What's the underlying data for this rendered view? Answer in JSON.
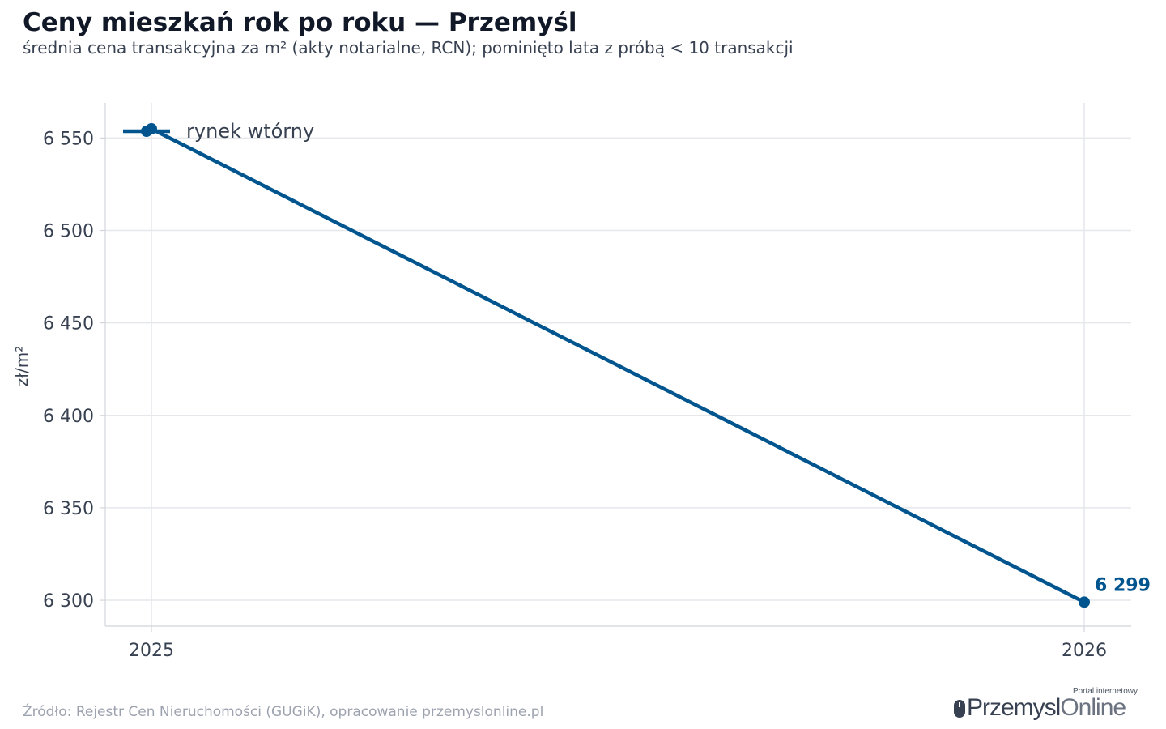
{
  "header": {
    "title": "Ceny mieszkań rok po roku — Przemyśl",
    "subtitle": "średnia cena transakcyjna za m² (akty notarialne, RCN); pominięto lata z próbą < 10 transakcji"
  },
  "footer": {
    "source": "Źródło: Rejestr Cen Nieruchomości (GUGiK), opracowanie przemyslonline.pl"
  },
  "logo": {
    "tagline": "Portal internetowy",
    "name_part1": "Przemysl",
    "name_part2": "Online"
  },
  "colors": {
    "series": "#00558f",
    "grid": "#e5e7eb",
    "axis": "#d1d5db",
    "tick_text": "#374151"
  },
  "chart_data": {
    "type": "line",
    "title": "Ceny mieszkań rok po roku — Przemyśl",
    "subtitle": "średnia cena transakcyjna za m² (akty notarialne, RCN); pominięto lata z próbą < 10 transakcji",
    "xlabel": "",
    "ylabel": "zł/m²",
    "x": [
      "2025",
      "2026"
    ],
    "x_tick_labels": [
      "2025",
      "2026"
    ],
    "y_ticks": [
      6300,
      6350,
      6400,
      6450,
      6500,
      6550
    ],
    "y_tick_labels": [
      "6 300",
      "6 350",
      "6 400",
      "6 450",
      "6 500",
      "6 550"
    ],
    "ylim": [
      6286,
      6569
    ],
    "grid": true,
    "legend_position": "top-left",
    "series": [
      {
        "name": "rynek wtórny",
        "values": [
          6555,
          6299
        ],
        "color": "#00558f",
        "end_label": "6 299"
      }
    ]
  }
}
